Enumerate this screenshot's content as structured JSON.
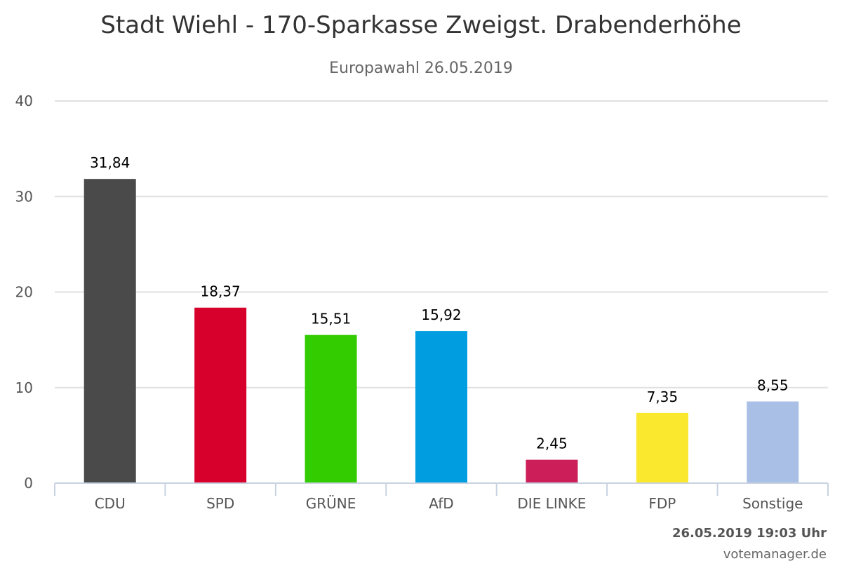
{
  "chart_data": {
    "type": "bar",
    "title": "Stadt Wiehl - 170-Sparkasse Zweigst. Drabenderhöhe",
    "subtitle": "Europawahl 26.05.2019",
    "categories": [
      "CDU",
      "SPD",
      "GRÜNE",
      "AfD",
      "DIE LINKE",
      "FDP",
      "Sonstige"
    ],
    "values": [
      31.84,
      18.37,
      15.51,
      15.92,
      2.45,
      7.35,
      8.55
    ],
    "value_labels": [
      "31,84",
      "18,37",
      "15,51",
      "15,92",
      "2,45",
      "7,35",
      "8,55"
    ],
    "colors": [
      "#4a4a4a",
      "#d7002d",
      "#33cc00",
      "#009ee0",
      "#cc1f5a",
      "#f9e82d",
      "#a9bfe5"
    ],
    "yticks": [
      0,
      10,
      20,
      30,
      40
    ],
    "ylim": [
      0,
      40
    ],
    "grid": true,
    "legend": "none"
  },
  "footer": {
    "timestamp": "26.05.2019 19:03 Uhr",
    "credit": "votemanager.de"
  }
}
